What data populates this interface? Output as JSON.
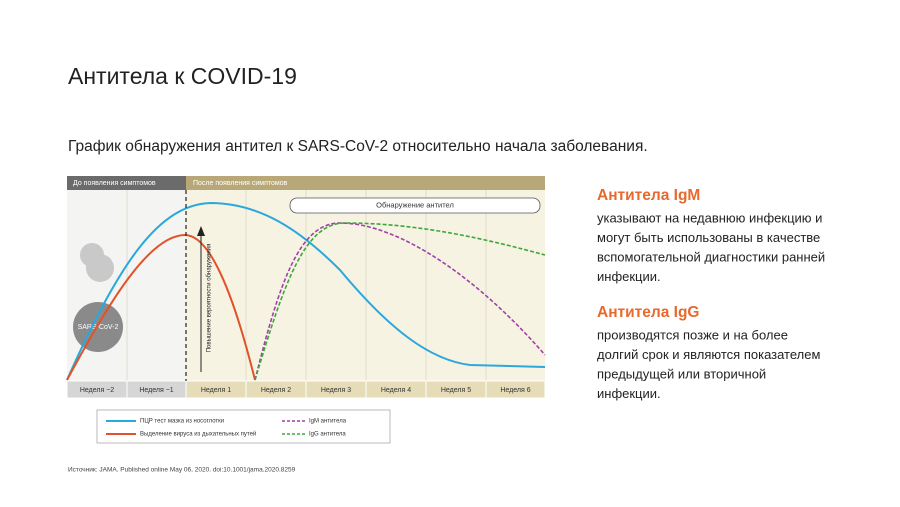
{
  "header": {
    "title": "Антитела к COVID-19",
    "subtitle": "График обнаружения антител к SARS-CoV-2 относительно начала заболевания."
  },
  "diagram": {
    "phase_before": "До появления симптомов",
    "phase_after": "После появления симптомов",
    "detection_label": "Обнаружение антител",
    "probability_label": "Повышение вероятности обнаружения",
    "virus_label": "SARS-CoV-2",
    "weeks": [
      "Неделя −2",
      "Неделя −1",
      "Неделя 1",
      "Неделя 2",
      "Неделя 3",
      "Неделя 4",
      "Неделя 5",
      "Неделя 6"
    ],
    "legend": [
      "ПЦР тест мазка из носоглотки",
      "Выделение вируса из дыхательных путей",
      "IgM антитела",
      "IgG антитела"
    ]
  },
  "notes": [
    {
      "heading": "Антитела  IgM",
      "lines": [
        "указывают на недавнюю инфекцию и",
        "могут быть использованы в качестве",
        "вспомогательной диагностики ранней",
        "инфекции."
      ]
    },
    {
      "heading": "Антитела  IgG",
      "lines": [
        "производятся позже и на более",
        "долгий срок и являются показателем",
        "предыдущей или вторичной",
        "инфекции."
      ]
    }
  ],
  "source": "Источник: JAMA. Published online  May 06, 2020. doi:10.1001/jama.2020.8259"
}
